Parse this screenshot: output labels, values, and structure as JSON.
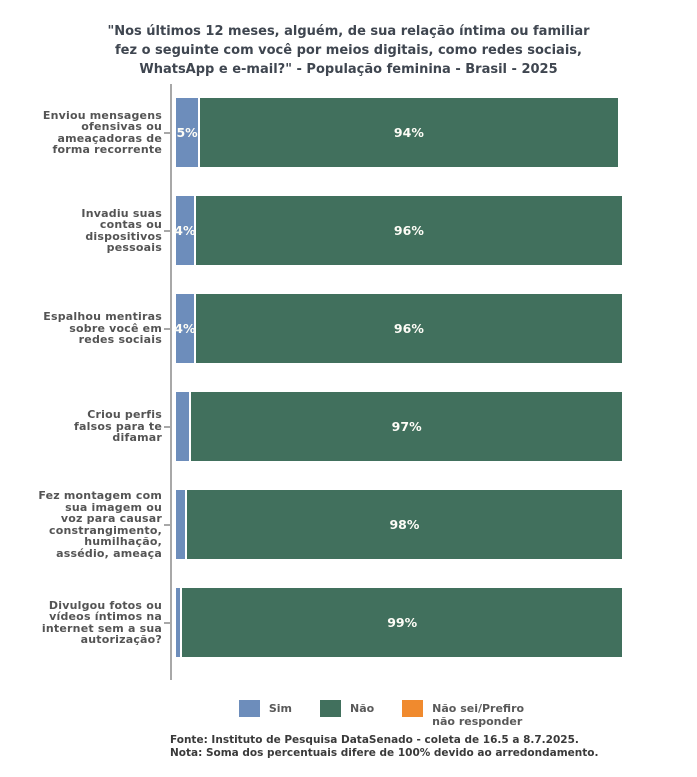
{
  "title": {
    "lines": [
      "\"Nos últimos 12 meses, alguém, de sua relação íntima ou familiar",
      "fez o seguinte com você por meios digitais, como redes sociais,",
      "WhatsApp e e-mail?\" - População feminina - Brasil - 2025"
    ]
  },
  "chart_data": {
    "type": "bar",
    "orientation": "horizontal",
    "stacked": true,
    "title": "\"Nos últimos 12 meses, alguém, de sua relação íntima ou familiar fez o seguinte com você por meios digitais, como redes sociais, WhatsApp e e-mail?\" - População feminina - Brasil - 2025",
    "categories": [
      "Enviou mensagens ofensivas ou ameaçadoras de forma recorrente",
      "Invadiu suas contas ou dispositivos pessoais",
      "Espalhou mentiras sobre você em redes sociais",
      "Criou perfis falsos para te difamar",
      "Fez montagem com sua imagem ou voz para causar constrangimento, humilhação, assédio, ameaça",
      "Divulgou fotos ou vídeos íntimos na internet sem a sua autorização?"
    ],
    "category_lines": [
      [
        "Enviou mensagens",
        "ofensivas ou",
        "ameaçadoras de",
        "forma recorrente"
      ],
      [
        "Invadiu suas",
        "contas ou",
        "dispositivos",
        "pessoais"
      ],
      [
        "Espalhou mentiras",
        "sobre você em",
        "redes sociais"
      ],
      [
        "Criou perfis",
        "falsos para te",
        "difamar"
      ],
      [
        "Fez montagem com",
        "sua imagem ou",
        "voz para causar",
        "constrangimento,",
        "humilhação,",
        "assédio, ameaça"
      ],
      [
        "Divulgou fotos ou",
        "vídeos íntimos na",
        "internet sem a sua",
        "autorização?"
      ]
    ],
    "series": [
      {
        "name": "Sim",
        "color": "#6d8dbb",
        "values": [
          5,
          4,
          4,
          3,
          2,
          1
        ],
        "labels": [
          "5%",
          "4%",
          "4%",
          "",
          "",
          ""
        ]
      },
      {
        "name": "Não",
        "color": "#41705d",
        "values": [
          94,
          96,
          96,
          97,
          98,
          99
        ],
        "labels": [
          "94%",
          "96%",
          "96%",
          "97%",
          "98%",
          "99%"
        ]
      },
      {
        "name": "Não sei/Prefiro não responder",
        "color": "#f08a2e",
        "values": [
          0,
          0,
          0,
          0,
          0,
          0
        ],
        "labels": [
          "",
          "",
          "",
          "",
          "",
          ""
        ]
      }
    ],
    "xlim": [
      0,
      100
    ],
    "value_format": "percent",
    "grid": false,
    "legend_position": "bottom"
  },
  "legend": {
    "items": [
      {
        "label": "Sim",
        "color": "#6d8dbb"
      },
      {
        "label": "Não",
        "color": "#41705d"
      },
      {
        "label": "Não sei/Prefiro não responder",
        "color": "#f08a2e"
      }
    ]
  },
  "footer": {
    "source": "Fonte: Instituto de Pesquisa DataSenado - coleta de 16.5 a 8.7.2025.",
    "note": "Nota: Soma dos percentuais difere de 100% devido ao arredondamento."
  }
}
